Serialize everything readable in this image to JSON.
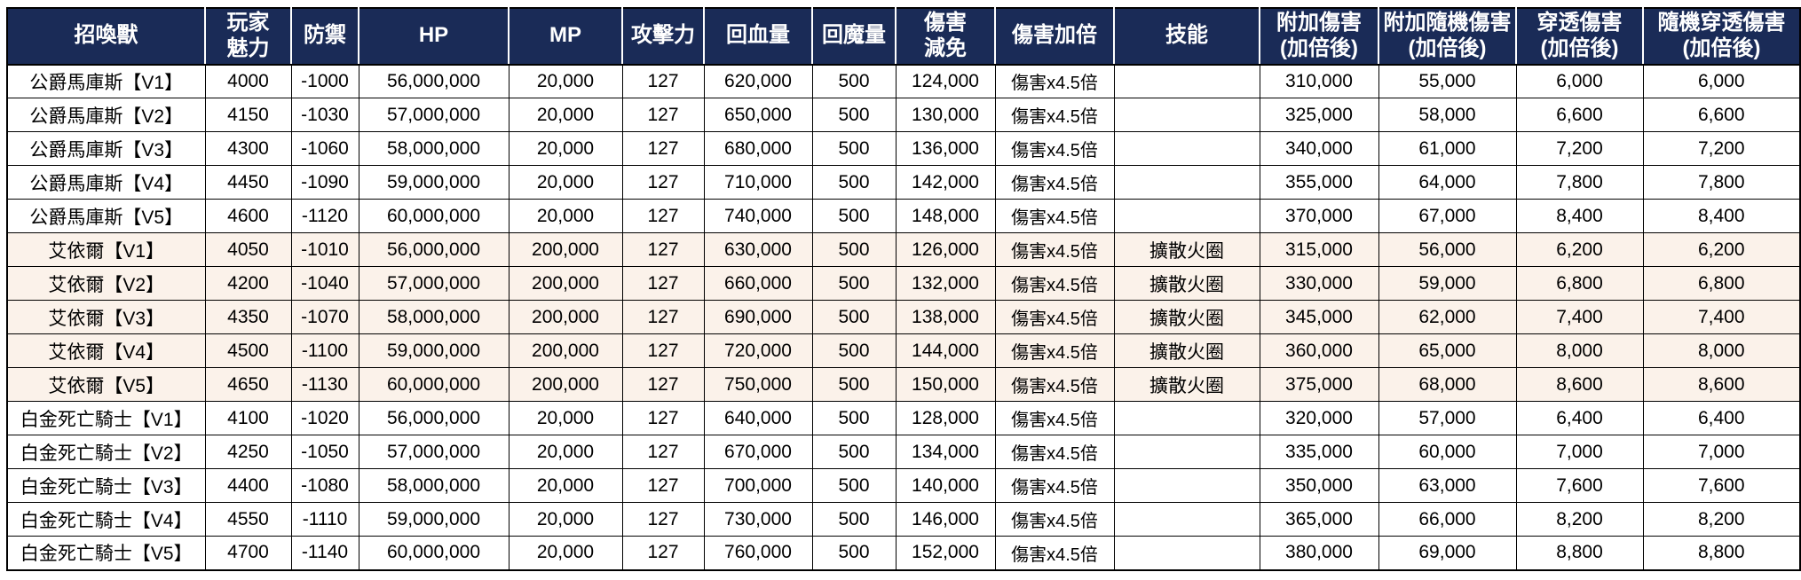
{
  "colors": {
    "header_bg": "#1A2B57",
    "header_fg": "#FFFFFF",
    "alt_row_bg": "#FBF2EA",
    "grid_line": "#000000"
  },
  "table": {
    "columns": [
      {
        "key": "name",
        "label": "招喚獸"
      },
      {
        "key": "player_charm",
        "label": "玩家\n魅力"
      },
      {
        "key": "defense",
        "label": "防禦"
      },
      {
        "key": "hp",
        "label": "HP"
      },
      {
        "key": "mp",
        "label": "MP"
      },
      {
        "key": "attack",
        "label": "攻擊力"
      },
      {
        "key": "hp_recovery",
        "label": "回血量"
      },
      {
        "key": "mp_recovery",
        "label": "回魔量"
      },
      {
        "key": "damage_reduction",
        "label": "傷害\n減免"
      },
      {
        "key": "damage_multiplier",
        "label": "傷害加倍"
      },
      {
        "key": "skill",
        "label": "技能"
      },
      {
        "key": "bonus_damage",
        "label": "附加傷害\n(加倍後)"
      },
      {
        "key": "bonus_random_damage",
        "label": "附加隨機傷害\n(加倍後)"
      },
      {
        "key": "pierce_damage",
        "label": "穿透傷害\n(加倍後)"
      },
      {
        "key": "random_pierce_damage",
        "label": "隨機穿透傷害\n(加倍後)"
      }
    ],
    "rows": [
      {
        "group": "duke",
        "cells": [
          "公爵馬庫斯【V1】",
          "4000",
          "-1000",
          "56,000,000",
          "20,000",
          "127",
          "620,000",
          "500",
          "124,000",
          "傷害x4.5倍",
          "",
          "310,000",
          "55,000",
          "6,000",
          "6,000"
        ]
      },
      {
        "group": "duke",
        "cells": [
          "公爵馬庫斯【V2】",
          "4150",
          "-1030",
          "57,000,000",
          "20,000",
          "127",
          "650,000",
          "500",
          "130,000",
          "傷害x4.5倍",
          "",
          "325,000",
          "58,000",
          "6,600",
          "6,600"
        ]
      },
      {
        "group": "duke",
        "cells": [
          "公爵馬庫斯【V3】",
          "4300",
          "-1060",
          "58,000,000",
          "20,000",
          "127",
          "680,000",
          "500",
          "136,000",
          "傷害x4.5倍",
          "",
          "340,000",
          "61,000",
          "7,200",
          "7,200"
        ]
      },
      {
        "group": "duke",
        "cells": [
          "公爵馬庫斯【V4】",
          "4450",
          "-1090",
          "59,000,000",
          "20,000",
          "127",
          "710,000",
          "500",
          "142,000",
          "傷害x4.5倍",
          "",
          "355,000",
          "64,000",
          "7,800",
          "7,800"
        ]
      },
      {
        "group": "duke",
        "cells": [
          "公爵馬庫斯【V5】",
          "4600",
          "-1120",
          "60,000,000",
          "20,000",
          "127",
          "740,000",
          "500",
          "148,000",
          "傷害x4.5倍",
          "",
          "370,000",
          "67,000",
          "8,400",
          "8,400"
        ]
      },
      {
        "group": "aiyier",
        "cells": [
          "艾依爾【V1】",
          "4050",
          "-1010",
          "56,000,000",
          "200,000",
          "127",
          "630,000",
          "500",
          "126,000",
          "傷害x4.5倍",
          "擴散火圈",
          "315,000",
          "56,000",
          "6,200",
          "6,200"
        ]
      },
      {
        "group": "aiyier",
        "cells": [
          "艾依爾【V2】",
          "4200",
          "-1040",
          "57,000,000",
          "200,000",
          "127",
          "660,000",
          "500",
          "132,000",
          "傷害x4.5倍",
          "擴散火圈",
          "330,000",
          "59,000",
          "6,800",
          "6,800"
        ]
      },
      {
        "group": "aiyier",
        "cells": [
          "艾依爾【V3】",
          "4350",
          "-1070",
          "58,000,000",
          "200,000",
          "127",
          "690,000",
          "500",
          "138,000",
          "傷害x4.5倍",
          "擴散火圈",
          "345,000",
          "62,000",
          "7,400",
          "7,400"
        ]
      },
      {
        "group": "aiyier",
        "cells": [
          "艾依爾【V4】",
          "4500",
          "-1100",
          "59,000,000",
          "200,000",
          "127",
          "720,000",
          "500",
          "144,000",
          "傷害x4.5倍",
          "擴散火圈",
          "360,000",
          "65,000",
          "8,000",
          "8,000"
        ]
      },
      {
        "group": "aiyier",
        "cells": [
          "艾依爾【V5】",
          "4650",
          "-1130",
          "60,000,000",
          "200,000",
          "127",
          "750,000",
          "500",
          "150,000",
          "傷害x4.5倍",
          "擴散火圈",
          "375,000",
          "68,000",
          "8,600",
          "8,600"
        ]
      },
      {
        "group": "knight",
        "cells": [
          "白金死亡騎士【V1】",
          "4100",
          "-1020",
          "56,000,000",
          "20,000",
          "127",
          "640,000",
          "500",
          "128,000",
          "傷害x4.5倍",
          "",
          "320,000",
          "57,000",
          "6,400",
          "6,400"
        ]
      },
      {
        "group": "knight",
        "cells": [
          "白金死亡騎士【V2】",
          "4250",
          "-1050",
          "57,000,000",
          "20,000",
          "127",
          "670,000",
          "500",
          "134,000",
          "傷害x4.5倍",
          "",
          "335,000",
          "60,000",
          "7,000",
          "7,000"
        ]
      },
      {
        "group": "knight",
        "cells": [
          "白金死亡騎士【V3】",
          "4400",
          "-1080",
          "58,000,000",
          "20,000",
          "127",
          "700,000",
          "500",
          "140,000",
          "傷害x4.5倍",
          "",
          "350,000",
          "63,000",
          "7,600",
          "7,600"
        ]
      },
      {
        "group": "knight",
        "cells": [
          "白金死亡騎士【V4】",
          "4550",
          "-1110",
          "59,000,000",
          "20,000",
          "127",
          "730,000",
          "500",
          "146,000",
          "傷害x4.5倍",
          "",
          "365,000",
          "66,000",
          "8,200",
          "8,200"
        ]
      },
      {
        "group": "knight",
        "cells": [
          "白金死亡騎士【V5】",
          "4700",
          "-1140",
          "60,000,000",
          "20,000",
          "127",
          "760,000",
          "500",
          "152,000",
          "傷害x4.5倍",
          "",
          "380,000",
          "69,000",
          "8,800",
          "8,800"
        ]
      }
    ]
  }
}
